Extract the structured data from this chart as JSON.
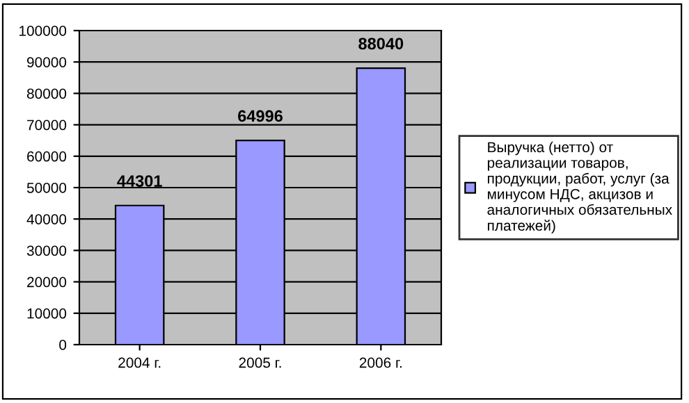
{
  "chart_data": {
    "type": "bar",
    "categories": [
      "2004 г.",
      "2005 г.",
      "2006 г."
    ],
    "series": [
      {
        "name": "Выручка (нетто) от\nреализации товаров,\nпродукции, работ, услуг (за\nминусом НДС, акцизов и\nаналогичных обязательных\nплатежей)",
        "color": "#9999ff",
        "values": [
          44301,
          64996,
          88040
        ]
      }
    ],
    "ylim": [
      0,
      100000
    ],
    "yticks": [
      0,
      10000,
      20000,
      30000,
      40000,
      50000,
      60000,
      70000,
      80000,
      90000,
      100000
    ],
    "grid": "y",
    "legend": "right",
    "data_labels": true
  }
}
